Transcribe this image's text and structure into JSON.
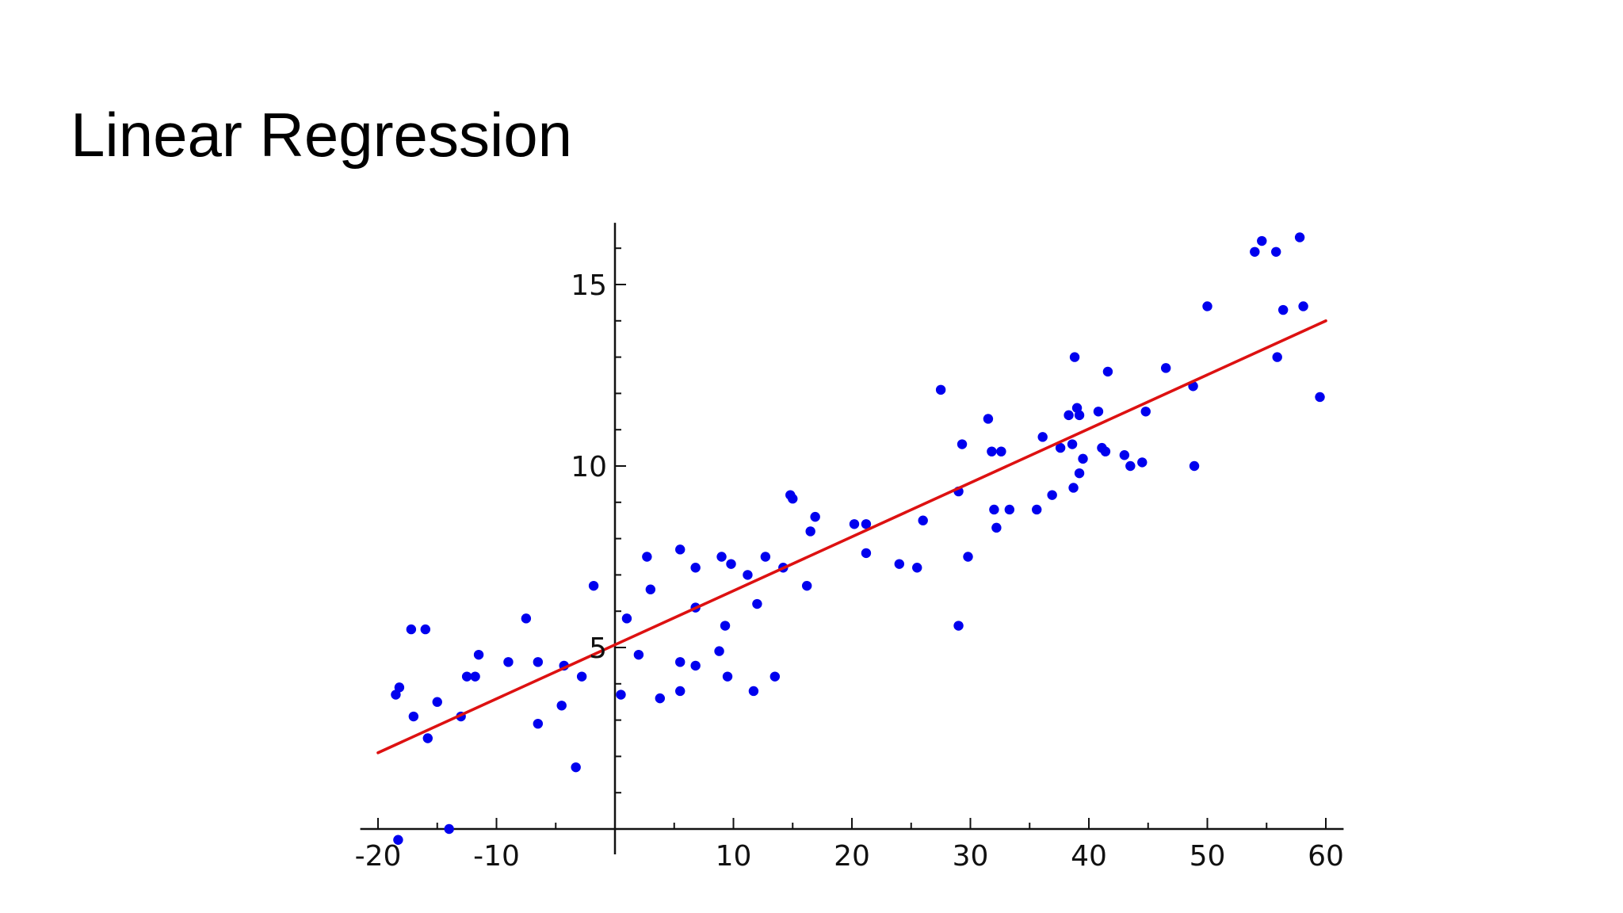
{
  "slide": {
    "title": "Linear Regression"
  },
  "chart_data": {
    "type": "scatter",
    "title": "",
    "xlabel": "",
    "ylabel": "",
    "xlim": [
      -21.5,
      61.5
    ],
    "ylim": [
      0,
      16.7
    ],
    "x_ticks": [
      -20,
      -10,
      10,
      20,
      30,
      40,
      50,
      60
    ],
    "y_ticks": [
      5,
      10,
      15
    ],
    "x_minor_step": 5,
    "y_minor_step": 1,
    "grid": false,
    "colors": {
      "points": "#0000ee",
      "fit_line": "#dd1111",
      "axes": "#111111"
    },
    "points": [
      [
        -18.5,
        3.7
      ],
      [
        -18.2,
        3.9
      ],
      [
        -17.2,
        5.5
      ],
      [
        -16.0,
        5.5
      ],
      [
        -17.0,
        3.1
      ],
      [
        -15.8,
        2.5
      ],
      [
        -15.0,
        3.5
      ],
      [
        -18.3,
        -0.3
      ],
      [
        -14.0,
        0.0
      ],
      [
        -13.0,
        3.1
      ],
      [
        -12.5,
        4.2
      ],
      [
        -11.8,
        4.2
      ],
      [
        -11.5,
        4.8
      ],
      [
        -9.0,
        4.6
      ],
      [
        -7.5,
        5.8
      ],
      [
        -6.5,
        4.6
      ],
      [
        -6.5,
        2.9
      ],
      [
        -4.5,
        3.4
      ],
      [
        -4.3,
        4.5
      ],
      [
        -3.3,
        1.7
      ],
      [
        -2.8,
        4.2
      ],
      [
        -1.8,
        6.7
      ],
      [
        0.5,
        3.7
      ],
      [
        1.0,
        5.8
      ],
      [
        2.0,
        4.8
      ],
      [
        2.7,
        7.5
      ],
      [
        3.0,
        6.6
      ],
      [
        3.8,
        3.6
      ],
      [
        5.5,
        7.7
      ],
      [
        5.5,
        4.6
      ],
      [
        5.5,
        3.8
      ],
      [
        6.8,
        7.2
      ],
      [
        6.8,
        6.1
      ],
      [
        6.8,
        4.5
      ],
      [
        8.8,
        4.9
      ],
      [
        9.0,
        7.5
      ],
      [
        9.3,
        5.6
      ],
      [
        9.5,
        4.2
      ],
      [
        9.8,
        7.3
      ],
      [
        11.2,
        7.0
      ],
      [
        11.7,
        3.8
      ],
      [
        12.0,
        6.2
      ],
      [
        12.7,
        7.5
      ],
      [
        13.5,
        4.2
      ],
      [
        14.2,
        7.2
      ],
      [
        14.8,
        9.2
      ],
      [
        15.0,
        9.1
      ],
      [
        16.2,
        6.7
      ],
      [
        16.5,
        8.2
      ],
      [
        16.9,
        8.6
      ],
      [
        20.2,
        8.4
      ],
      [
        21.2,
        7.6
      ],
      [
        21.2,
        8.4
      ],
      [
        24.0,
        7.3
      ],
      [
        25.5,
        7.2
      ],
      [
        26.0,
        8.5
      ],
      [
        27.5,
        12.1
      ],
      [
        29.0,
        9.3
      ],
      [
        29.0,
        5.6
      ],
      [
        29.3,
        10.6
      ],
      [
        29.8,
        7.5
      ],
      [
        31.5,
        11.3
      ],
      [
        31.8,
        10.4
      ],
      [
        32.0,
        8.8
      ],
      [
        32.2,
        8.3
      ],
      [
        32.6,
        10.4
      ],
      [
        33.3,
        8.8
      ],
      [
        35.6,
        8.8
      ],
      [
        36.1,
        10.8
      ],
      [
        36.9,
        9.2
      ],
      [
        37.6,
        10.5
      ],
      [
        38.3,
        11.4
      ],
      [
        38.6,
        10.6
      ],
      [
        38.7,
        9.4
      ],
      [
        38.8,
        13.0
      ],
      [
        39.0,
        11.6
      ],
      [
        39.2,
        11.4
      ],
      [
        39.2,
        9.8
      ],
      [
        39.5,
        10.2
      ],
      [
        40.8,
        11.5
      ],
      [
        41.1,
        10.5
      ],
      [
        41.4,
        10.4
      ],
      [
        41.6,
        12.6
      ],
      [
        43.0,
        10.3
      ],
      [
        43.5,
        10.0
      ],
      [
        44.5,
        10.1
      ],
      [
        44.8,
        11.5
      ],
      [
        46.5,
        12.7
      ],
      [
        48.8,
        12.2
      ],
      [
        48.9,
        10.0
      ],
      [
        50.0,
        14.4
      ],
      [
        54.0,
        15.9
      ],
      [
        54.6,
        16.2
      ],
      [
        55.8,
        15.9
      ],
      [
        55.9,
        13.0
      ],
      [
        56.4,
        14.3
      ],
      [
        57.8,
        16.3
      ],
      [
        58.1,
        14.4
      ],
      [
        59.5,
        11.9
      ]
    ],
    "fit_line": {
      "x": [
        -20,
        60
      ],
      "y": [
        2.1,
        14.0
      ]
    }
  }
}
